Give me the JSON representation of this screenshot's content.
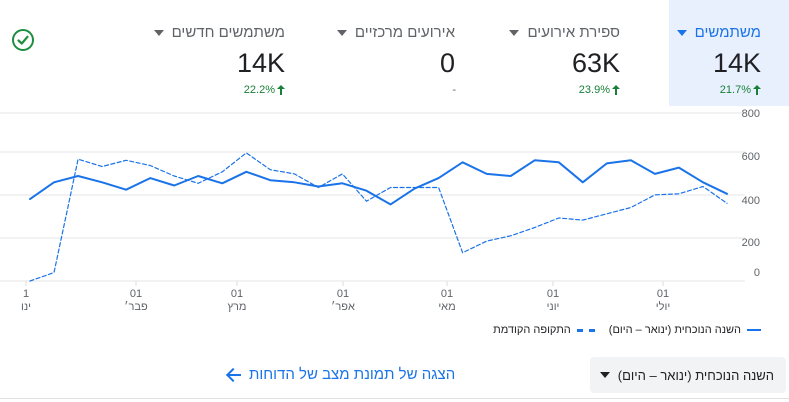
{
  "metrics": [
    {
      "title": "משתמשים",
      "value": "14K",
      "change": "21.7%",
      "direction": "up",
      "selected": true
    },
    {
      "title": "ספירת אירועים",
      "value": "63K",
      "change": "23.9%",
      "direction": "up",
      "selected": false
    },
    {
      "title": "אירועים מרכזיים",
      "value": "0",
      "change": "-",
      "direction": "none",
      "selected": false
    },
    {
      "title": "משתמשים חדשים",
      "value": "14K",
      "change": "22.2%",
      "direction": "up",
      "selected": false
    }
  ],
  "status_icon": "check-circle-icon",
  "colors": {
    "accent": "#1a73e8",
    "positive": "#188038",
    "selected_bg": "#e8f0fe"
  },
  "chart_data": {
    "type": "line",
    "y_ticks": [
      "800",
      "600",
      "400",
      "200",
      "0"
    ],
    "ylim": [
      0,
      800
    ],
    "x_tick_labels": [
      {
        "day": "1",
        "month": "ינו"
      },
      {
        "day": "01",
        "month": "פבר׳"
      },
      {
        "day": "01",
        "month": "מרץ"
      },
      {
        "day": "01",
        "month": "אפר׳"
      },
      {
        "day": "01",
        "month": "מאי"
      },
      {
        "day": "01",
        "month": "יוני"
      },
      {
        "day": "01",
        "month": "יולי"
      }
    ],
    "series": [
      {
        "name": "השנה הנוכחית (ינואר – היום)",
        "style": "solid",
        "values": [
          390,
          470,
          500,
          470,
          435,
          490,
          455,
          500,
          465,
          520,
          480,
          470,
          450,
          465,
          430,
          365,
          440,
          490,
          565,
          510,
          500,
          575,
          565,
          470,
          560,
          575,
          510,
          540,
          470,
          415
        ]
      },
      {
        "name": "התקופה הקודמת",
        "style": "dashed",
        "values": [
          0,
          40,
          580,
          545,
          575,
          550,
          500,
          465,
          520,
          610,
          530,
          510,
          445,
          510,
          380,
          445,
          445,
          445,
          135,
          190,
          215,
          255,
          300,
          290,
          320,
          350,
          410,
          415,
          450,
          370
        ]
      }
    ],
    "grid": true,
    "legend_position": "bottom-right"
  },
  "legend": {
    "current": "השנה הנוכחית (ינואר – היום)",
    "previous": "התקופה הקודמת"
  },
  "footer": {
    "period_select": "השנה הנוכחית (ינואר – היום)",
    "report_link": "הצגה של תמונת מצב של הדוחות"
  }
}
